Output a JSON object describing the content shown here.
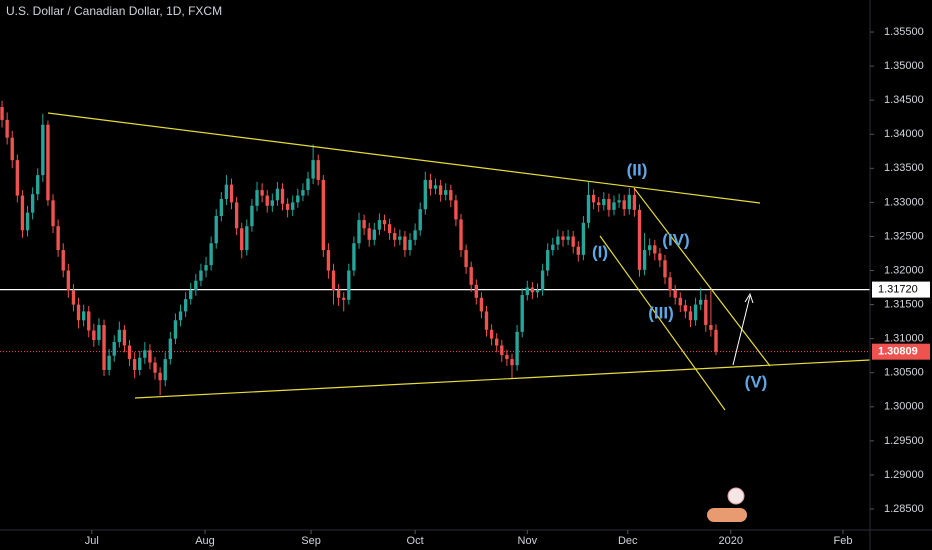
{
  "chart_data": {
    "type": "candlestick",
    "title": "U.S. Dollar / Canadian Dollar, 1D, FXCM",
    "up_color": "#26a69a",
    "down_color": "#ef5350",
    "open": [
      1.344,
      1.3421,
      1.3395,
      1.3362,
      1.331,
      1.3259,
      1.3285,
      1.3312,
      1.334,
      1.3414,
      1.3303,
      1.3265,
      1.323,
      1.32,
      1.3171,
      1.315,
      1.3127,
      1.314,
      1.3112,
      1.3098,
      1.312,
      1.3054,
      1.3075,
      1.3095,
      1.3113,
      1.309,
      1.307,
      1.3054,
      1.3072,
      1.3083,
      1.3065,
      1.305,
      1.3039,
      1.307,
      1.31,
      1.3127,
      1.314,
      1.3158,
      1.3171,
      1.3185,
      1.32,
      1.3208,
      1.324,
      1.328,
      1.3305,
      1.3326,
      1.33,
      1.3262,
      1.323,
      1.3265,
      1.3295,
      1.3318,
      1.331,
      1.3295,
      1.3303,
      1.332,
      1.3298,
      1.3289,
      1.33,
      1.331,
      1.3318,
      1.3335,
      1.3362,
      1.3333,
      1.323,
      1.32,
      1.3171,
      1.316,
      1.3157,
      1.32,
      1.324,
      1.3274,
      1.3262,
      1.3245,
      1.326,
      1.3274,
      1.3268,
      1.3255,
      1.3245,
      1.325,
      1.323,
      1.3245,
      1.3259,
      1.329,
      1.3333,
      1.332,
      1.3325,
      1.3311,
      1.3318,
      1.3303,
      1.3275,
      1.323,
      1.3205,
      1.3179,
      1.316,
      1.314,
      1.3113,
      1.31,
      1.309,
      1.3076,
      1.307,
      1.3061,
      1.311,
      1.3164,
      1.3175,
      1.3168,
      1.3171,
      1.32,
      1.323,
      1.3238,
      1.325,
      1.3245,
      1.325,
      1.3235,
      1.3223,
      1.327,
      1.3311,
      1.33,
      1.3296,
      1.3305,
      1.3289,
      1.33,
      1.3303,
      1.329,
      1.3311,
      1.3289,
      1.3201,
      1.323,
      1.3237,
      1.3225,
      1.3215,
      1.319,
      1.3171,
      1.316,
      1.3149,
      1.314,
      1.3127,
      1.315,
      1.3157,
      1.312,
      1.3113
    ],
    "high": [
      1.3449,
      1.3432,
      1.3405,
      1.337,
      1.3318,
      1.3295,
      1.3322,
      1.335,
      1.343,
      1.342,
      1.3312,
      1.3275,
      1.324,
      1.321,
      1.318,
      1.316,
      1.315,
      1.3148,
      1.3122,
      1.313,
      1.3128,
      1.3085,
      1.3105,
      1.3125,
      1.312,
      1.3098,
      1.308,
      1.3082,
      1.3095,
      1.3092,
      1.3073,
      1.3058,
      1.308,
      1.311,
      1.3137,
      1.315,
      1.3168,
      1.3182,
      1.3195,
      1.321,
      1.322,
      1.325,
      1.329,
      1.3315,
      1.334,
      1.3335,
      1.3308,
      1.327,
      1.3275,
      1.3305,
      1.333,
      1.3328,
      1.3318,
      1.3313,
      1.333,
      1.3328,
      1.3306,
      1.331,
      1.332,
      1.3328,
      1.3345,
      1.3385,
      1.337,
      1.334,
      1.324,
      1.321,
      1.318,
      1.3168,
      1.321,
      1.325,
      1.3285,
      1.3282,
      1.327,
      1.327,
      1.3284,
      1.3282,
      1.3276,
      1.3263,
      1.326,
      1.3258,
      1.3255,
      1.3269,
      1.33,
      1.3345,
      1.3342,
      1.3335,
      1.3333,
      1.3328,
      1.3326,
      1.3311,
      1.3283,
      1.3238,
      1.3213,
      1.3187,
      1.3168,
      1.3148,
      1.3121,
      1.3108,
      1.3098,
      1.3084,
      1.3078,
      1.312,
      1.3174,
      1.3185,
      1.3183,
      1.3181,
      1.321,
      1.324,
      1.3248,
      1.326,
      1.3258,
      1.326,
      1.3258,
      1.3243,
      1.328,
      1.333,
      1.3319,
      1.3308,
      1.3315,
      1.3313,
      1.331,
      1.3313,
      1.3311,
      1.3321,
      1.3319,
      1.3297,
      1.3255,
      1.3247,
      1.3245,
      1.3233,
      1.3223,
      1.3198,
      1.3179,
      1.3168,
      1.3157,
      1.3148,
      1.316,
      1.3175,
      1.3165,
      1.317,
      1.3121
    ],
    "low": [
      1.341,
      1.3385,
      1.335,
      1.33,
      1.3248,
      1.325,
      1.3275,
      1.3303,
      1.333,
      1.3295,
      1.3255,
      1.322,
      1.319,
      1.316,
      1.314,
      1.3115,
      1.3118,
      1.3102,
      1.3088,
      1.309,
      1.3045,
      1.3046,
      1.3066,
      1.3087,
      1.308,
      1.306,
      1.3042,
      1.3046,
      1.3063,
      1.3055,
      1.304,
      1.3017,
      1.303,
      1.3062,
      1.3092,
      1.3118,
      1.3132,
      1.315,
      1.3163,
      1.3177,
      1.319,
      1.32,
      1.3232,
      1.3272,
      1.3296,
      1.329,
      1.3252,
      1.3218,
      1.3222,
      1.3257,
      1.3287,
      1.33,
      1.3285,
      1.3286,
      1.3295,
      1.3288,
      1.3278,
      1.328,
      1.3292,
      1.3302,
      1.331,
      1.3327,
      1.3325,
      1.322,
      1.3188,
      1.315,
      1.3148,
      1.314,
      1.315,
      1.3192,
      1.3232,
      1.3252,
      1.3235,
      1.3237,
      1.3252,
      1.3258,
      1.3245,
      1.3235,
      1.3237,
      1.322,
      1.3222,
      1.3237,
      1.3251,
      1.3282,
      1.331,
      1.3312,
      1.3301,
      1.3303,
      1.3293,
      1.3265,
      1.322,
      1.3195,
      1.3169,
      1.315,
      1.313,
      1.3103,
      1.309,
      1.308,
      1.3066,
      1.306,
      1.3042,
      1.3053,
      1.3102,
      1.3156,
      1.3158,
      1.316,
      1.3163,
      1.3192,
      1.3222,
      1.323,
      1.3235,
      1.3237,
      1.3225,
      1.3213,
      1.3215,
      1.3262,
      1.329,
      1.3286,
      1.3288,
      1.3279,
      1.3281,
      1.3292,
      1.328,
      1.3282,
      1.3279,
      1.3191,
      1.3193,
      1.3222,
      1.3215,
      1.3205,
      1.318,
      1.3161,
      1.315,
      1.3139,
      1.313,
      1.3117,
      1.3119,
      1.3142,
      1.311,
      1.3103,
      1.3076
    ],
    "close": [
      1.3421,
      1.3395,
      1.3362,
      1.331,
      1.3259,
      1.3285,
      1.3312,
      1.334,
      1.3414,
      1.3303,
      1.3265,
      1.323,
      1.32,
      1.3171,
      1.315,
      1.3127,
      1.314,
      1.3112,
      1.3098,
      1.312,
      1.3054,
      1.3075,
      1.3095,
      1.3113,
      1.309,
      1.307,
      1.3054,
      1.3072,
      1.3083,
      1.3065,
      1.305,
      1.3039,
      1.307,
      1.31,
      1.3127,
      1.314,
      1.3158,
      1.3171,
      1.3185,
      1.32,
      1.3208,
      1.324,
      1.328,
      1.3305,
      1.3326,
      1.33,
      1.3262,
      1.323,
      1.3265,
      1.3295,
      1.3318,
      1.331,
      1.3295,
      1.3303,
      1.332,
      1.3298,
      1.3289,
      1.33,
      1.331,
      1.3318,
      1.3335,
      1.3362,
      1.3333,
      1.323,
      1.32,
      1.3171,
      1.316,
      1.3157,
      1.32,
      1.324,
      1.3274,
      1.3262,
      1.3245,
      1.326,
      1.3274,
      1.3268,
      1.3255,
      1.3245,
      1.325,
      1.323,
      1.3245,
      1.3259,
      1.329,
      1.3333,
      1.332,
      1.3325,
      1.3311,
      1.3318,
      1.3303,
      1.3275,
      1.323,
      1.3205,
      1.3179,
      1.316,
      1.314,
      1.3113,
      1.31,
      1.309,
      1.3076,
      1.307,
      1.3061,
      1.311,
      1.3164,
      1.3175,
      1.3168,
      1.3171,
      1.32,
      1.323,
      1.3238,
      1.325,
      1.3245,
      1.325,
      1.3235,
      1.3223,
      1.327,
      1.3311,
      1.33,
      1.3296,
      1.3305,
      1.3289,
      1.33,
      1.3303,
      1.329,
      1.3311,
      1.3289,
      1.3201,
      1.323,
      1.3237,
      1.3225,
      1.3215,
      1.319,
      1.3171,
      1.316,
      1.3149,
      1.314,
      1.3127,
      1.315,
      1.3157,
      1.312,
      1.3113,
      1.30809
    ],
    "xlim": [
      -0.4,
      170.2
    ],
    "xticks": [
      {
        "value": 17.6,
        "label": "Jul"
      },
      {
        "value": 39.8,
        "label": "Aug"
      },
      {
        "value": 60.6,
        "label": "Sep"
      },
      {
        "value": 81,
        "label": "Oct"
      },
      {
        "value": 103,
        "label": "Nov"
      },
      {
        "value": 122.7,
        "label": "Dec"
      },
      {
        "value": 142.9,
        "label": "2020"
      },
      {
        "value": 164.9,
        "label": "Feb"
      }
    ],
    "ylim": [
      1.28192,
      1.3597
    ],
    "yticks": [
      {
        "value": 1.355,
        "label": "1.35500"
      },
      {
        "value": 1.35,
        "label": "1.35000"
      },
      {
        "value": 1.345,
        "label": "1.34500"
      },
      {
        "value": 1.34,
        "label": "1.34000"
      },
      {
        "value": 1.335,
        "label": "1.33500"
      },
      {
        "value": 1.33,
        "label": "1.33000"
      },
      {
        "value": 1.325,
        "label": "1.32500"
      },
      {
        "value": 1.32,
        "label": "1.32000"
      },
      {
        "value": 1.315,
        "label": "1.31500"
      },
      {
        "value": 1.31,
        "label": "1.31000"
      },
      {
        "value": 1.305,
        "label": "1.30500"
      },
      {
        "value": 1.3,
        "label": "1.30000"
      },
      {
        "value": 1.295,
        "label": "1.29500"
      },
      {
        "value": 1.29,
        "label": "1.29000"
      },
      {
        "value": 1.285,
        "label": "1.28500"
      }
    ],
    "level_line": {
      "value": 1.3172,
      "label": "1.31720"
    },
    "last_price": 1.30809,
    "annotations": [
      "(I)",
      "(II)",
      "(III)",
      "(IV)",
      "(V)"
    ]
  }
}
